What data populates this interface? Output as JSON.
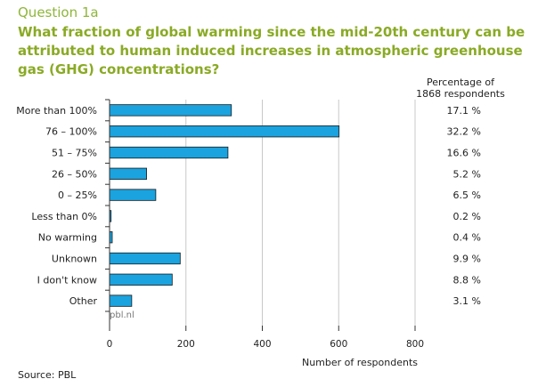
{
  "header": {
    "question_number": "Question 1a",
    "title": "What fraction of global warming since the mid-20th century can be attributed to human induced increases in atmospheric greenhouse gas (GHG) concentrations?"
  },
  "percent_header": {
    "line1": "Percentage of",
    "line2": "1868 respondents"
  },
  "watermark": "pbl.nl",
  "source": "Source: PBL",
  "colors": {
    "bar": "#1aa3df",
    "bar_edge": "#1a1a1a",
    "title": "#8aaa25",
    "axis": "#333333"
  },
  "chart_data": {
    "type": "bar",
    "orientation": "horizontal",
    "categories": [
      "More than 100%",
      "76 – 100%",
      "51 – 75%",
      "26 – 50%",
      "0 – 25%",
      "Less than 0%",
      "No warming",
      "Unknown",
      "I don't know",
      "Other"
    ],
    "values": [
      319,
      601,
      310,
      97,
      121,
      4,
      7,
      185,
      164,
      58
    ],
    "percentages": [
      "17.1 %",
      "32.2 %",
      "16.6 %",
      "5.2 %",
      "6.5 %",
      "0.2 %",
      "0.4 %",
      "9.9 %",
      "8.8 %",
      "3.1 %"
    ],
    "xlabel": "Number of respondents",
    "xlim": [
      0,
      800
    ],
    "xticks": [
      0,
      200,
      400,
      600,
      800
    ],
    "grid": true
  }
}
